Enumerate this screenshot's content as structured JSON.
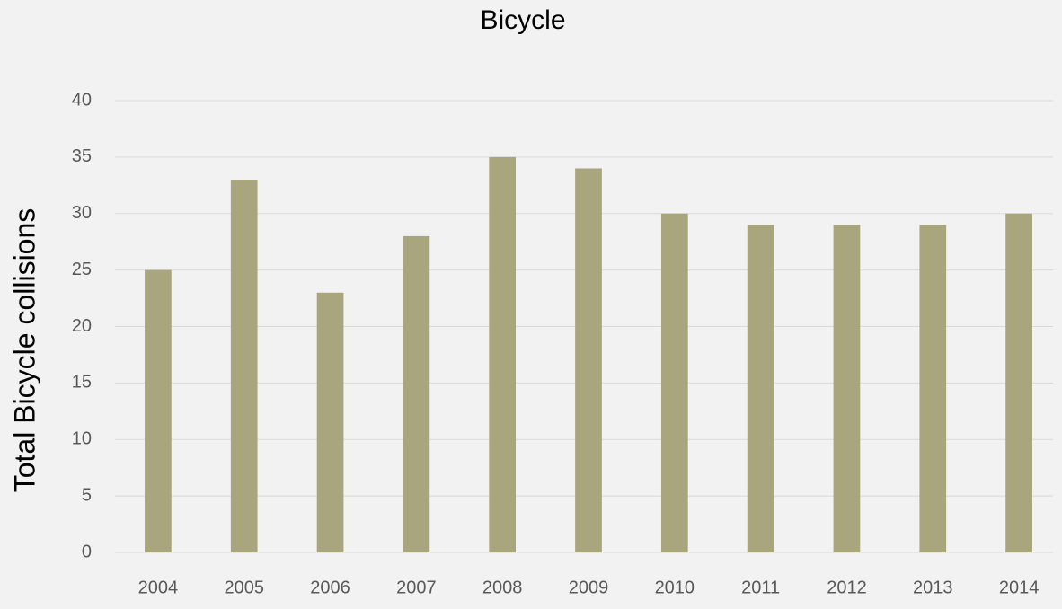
{
  "chart_data": {
    "type": "bar",
    "title": "Bicycle",
    "y_label": "Total Bicycle collisions",
    "categories": [
      "2004",
      "2005",
      "2006",
      "2007",
      "2008",
      "2009",
      "2010",
      "2011",
      "2012",
      "2013",
      "2014"
    ],
    "values": [
      25,
      33,
      23,
      28,
      35,
      34,
      30,
      29,
      29,
      29,
      30
    ],
    "color": "#a9a57c",
    "ylim": [
      0,
      40
    ],
    "yticks": [
      0,
      5,
      10,
      15,
      20,
      25,
      30,
      35,
      40
    ],
    "grid": true
  }
}
